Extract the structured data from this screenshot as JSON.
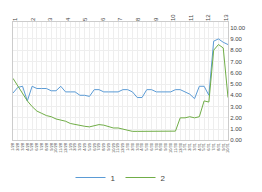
{
  "chart_data": {
    "type": "line",
    "categories": [
      "1/28",
      "2/28",
      "3/28",
      "4/28",
      "5/28",
      "6/28",
      "7/28",
      "8/28",
      "9/28",
      "10/28",
      "11/28",
      "12/28",
      "1/29",
      "2/29",
      "3/29",
      "4/29",
      "5/29",
      "6/29",
      "7/29",
      "8/29",
      "9/29",
      "10/29",
      "11/29",
      "12/29",
      "1/30",
      "2/30",
      "3/30",
      "4/30",
      "5/30",
      "6/30",
      "7/30",
      "8/30",
      "9/30",
      "10/30",
      "11/30",
      "12/30",
      "1/31",
      "2/31",
      "3/31",
      "4/31",
      "5/31",
      "6/31",
      "7/31",
      "8/31",
      "9/31",
      "10/31"
    ],
    "series": [
      {
        "name": "1",
        "color": "#5b9bd5",
        "values": [
          4.2,
          4.7,
          4.8,
          3.5,
          4.8,
          4.6,
          4.6,
          4.6,
          4.4,
          4.4,
          4.8,
          4.3,
          4.3,
          4.3,
          4.0,
          4.0,
          3.9,
          4.5,
          4.5,
          4.3,
          4.3,
          4.3,
          4.3,
          4.5,
          4.5,
          4.3,
          3.8,
          3.8,
          4.5,
          4.5,
          4.3,
          4.3,
          4.3,
          4.3,
          4.5,
          4.5,
          4.3,
          4.1,
          3.7,
          4.8,
          4.8,
          4.0,
          8.8,
          9.0,
          8.7,
          8.5
        ]
      },
      {
        "name": "2",
        "color": "#70ad47",
        "values": [
          5.5,
          4.8,
          4.2,
          3.5,
          3.0,
          2.6,
          2.4,
          2.2,
          2.1,
          1.9,
          1.8,
          1.7,
          1.5,
          1.4,
          1.35,
          1.25,
          1.2,
          1.3,
          1.4,
          1.35,
          1.2,
          1.1,
          1.1,
          1.0,
          0.85,
          0.8,
          0.8,
          0.8,
          0.85,
          0.85,
          0.82,
          0.82,
          0.82,
          0.82,
          0.82,
          2.0,
          2.0,
          2.1,
          2.0,
          2.1,
          3.5,
          3.4,
          8.0,
          8.5,
          8.2,
          3.8
        ]
      }
    ],
    "ylim": [
      0.0,
      10.5
    ],
    "yticks": [
      {
        "value": 0.0,
        "label": "0.00"
      },
      {
        "value": 1.0,
        "label": "1.00"
      },
      {
        "value": 2.0,
        "label": "2.00"
      },
      {
        "value": 3.0,
        "label": "3.00"
      },
      {
        "value": 4.0,
        "label": "4.00"
      },
      {
        "value": 5.0,
        "label": "5.00"
      },
      {
        "value": 6.0,
        "label": "6.00"
      },
      {
        "value": 7.0,
        "label": "7.00"
      },
      {
        "value": 8.0,
        "label": "8.00"
      },
      {
        "value": 9.0,
        "label": "9.00"
      },
      {
        "value": 10.0,
        "label": "10.00"
      }
    ],
    "x2lim": [
      -0.5,
      45.5
    ],
    "x2ticks": [
      {
        "value": 0,
        "label": "1"
      },
      {
        "value": 3.75,
        "label": "2"
      },
      {
        "value": 7.5,
        "label": "3"
      },
      {
        "value": 11.25,
        "label": "4"
      },
      {
        "value": 15,
        "label": "5"
      },
      {
        "value": 18.75,
        "label": "6"
      },
      {
        "value": 22.5,
        "label": "7"
      },
      {
        "value": 26.25,
        "label": "8"
      },
      {
        "value": 30,
        "label": "9"
      },
      {
        "value": 33.75,
        "label": "10"
      },
      {
        "value": 37.5,
        "label": "11"
      },
      {
        "value": 41.25,
        "label": "12"
      },
      {
        "value": 45,
        "label": "13"
      }
    ],
    "grid": true,
    "legend": "bottom"
  }
}
